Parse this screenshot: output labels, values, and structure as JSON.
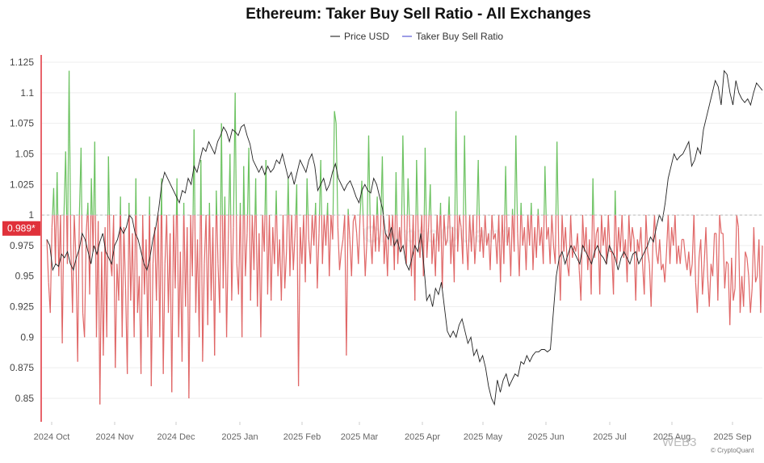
{
  "chart_data": {
    "type": "line",
    "title": "Ethereum: Taker Buy Sell Ratio - All Exchanges",
    "legend": [
      {
        "name": "Price USD",
        "color": "#333333"
      },
      {
        "name": "Taker Buy Sell Ratio",
        "color": "#5b5bd6"
      }
    ],
    "legend_position": "top-center",
    "y_ticks": [
      "1.125",
      "1.1",
      "1.075",
      "1.05",
      "1.025",
      "1",
      "0.975",
      "0.95",
      "0.925",
      "0.9",
      "0.875",
      "0.85"
    ],
    "ylim": [
      0.835,
      1.133
    ],
    "x_ticks": [
      "2024 Oct",
      "2024 Nov",
      "2024 Dec",
      "2025 Jan",
      "2025 Feb",
      "2025 Mar",
      "2025 Apr",
      "2025 May",
      "2025 Jun",
      "2025 Jul",
      "2025 Aug",
      "2025 Sep"
    ],
    "baseline": 1,
    "current_value_label": "0.989*",
    "colors": {
      "above": "#6cc261",
      "below": "#e06767",
      "price": "#222222",
      "marker": "#e0313a"
    },
    "grid": true,
    "ratio_values": [
      0.98,
      0.945,
      0.92,
      0.99,
      1.022,
      0.96,
      1.035,
      0.95,
      1.0,
      0.895,
      1.0,
      1.052,
      0.96,
      1.118,
      0.975,
      0.92,
      1.0,
      0.965,
      0.88,
      1.0,
      1.055,
      0.92,
      0.9,
      0.985,
      1.01,
      0.935,
      1.03,
      0.97,
      1.06,
      0.9,
      0.995,
      0.845,
      0.97,
      0.885,
      0.99,
      0.9,
      1.048,
      0.965,
      0.95,
      1.0,
      0.875,
      0.96,
      0.93,
      1.015,
      0.9,
      0.99,
      0.94,
      0.87,
      1.01,
      0.93,
      0.985,
      0.9,
      1.03,
      0.92,
      0.95,
      0.87,
      1.0,
      0.935,
      0.98,
      0.9,
      1.015,
      0.86,
      0.96,
      0.99,
      0.93,
      1.0,
      0.9,
      1.03,
      0.87,
      0.96,
      1.0,
      0.92,
      0.985,
      0.855,
      1.0,
      0.94,
      1.03,
      0.9,
      0.97,
      0.88,
      1.01,
      0.925,
      0.99,
      0.85,
      1.0,
      0.95,
      1.07,
      0.92,
      0.98,
      0.9,
      1.045,
      0.88,
      0.96,
      1.0,
      0.91,
      1.01,
      0.93,
      0.99,
      0.885,
      1.02,
      0.96,
      0.92,
      1.075,
      0.94,
      1.015,
      0.9,
      0.98,
      1.05,
      0.93,
      0.99,
      1.1,
      0.96,
      0.935,
      1.01,
      0.9,
      1.04,
      0.95,
      0.985,
      1.055,
      0.93,
      1.0,
      0.955,
      1.03,
      0.925,
      0.985,
      0.9,
      1.0,
      0.97,
      1.045,
      0.935,
      1.0,
      0.93,
      0.99,
      0.96,
      1.02,
      0.95,
      0.98,
      0.93,
      1.0,
      0.94,
      0.97,
      1.03,
      0.95,
      1.0,
      0.955,
      0.985,
      1.025,
      0.86,
      0.99,
      0.96,
      1.0,
      0.945,
      1.03,
      0.98,
      0.96,
      1.0,
      0.975,
      1.01,
      0.94,
      0.985,
      1.045,
      0.96,
      1.0,
      0.975,
      1.01,
      0.95,
      1.0,
      0.98,
      1.085,
      1.075,
      0.99,
      0.955,
      0.97,
      0.98,
      1.0,
      0.885,
      1.005,
      0.98,
      0.95,
      0.995,
      1.0,
      0.985,
      0.96,
      1.0,
      1.028,
      0.99,
      0.95,
      0.98,
      1.065,
      0.985,
      0.96,
      1.0,
      0.97,
      1.015,
      0.97,
      0.99,
      1.048,
      0.96,
      0.985,
      0.95,
      1.0,
      0.975,
      1.0,
      0.955,
      1.035,
      0.96,
      0.99,
      0.97,
      1.065,
      0.985,
      0.96,
      1.03,
      0.99,
      0.95,
      1.0,
      0.93,
      1.045,
      0.98,
      0.965,
      1.0,
      0.95,
      1.055,
      0.965,
      0.99,
      1.025,
      0.96,
      0.985,
      0.95,
      1.0,
      0.97,
      1.01,
      0.94,
      1.0,
      0.975,
      0.98,
      1.015,
      0.96,
      0.99,
      0.945,
      1.085,
      0.97,
      1.0,
      0.99,
      0.96,
      1.065,
      0.98,
      0.955,
      1.0,
      0.97,
      1.0,
      0.96,
      0.985,
      1.045,
      0.97,
      0.99,
      0.965,
      1.0,
      0.975,
      0.985,
      0.955,
      1.0,
      0.98,
      0.985,
      0.96,
      1.0,
      0.945,
      1.0,
      0.96,
      1.04,
      0.975,
      0.99,
      0.95,
      1.005,
      0.97,
      1.065,
      0.985,
      0.95,
      1.01,
      0.975,
      0.99,
      0.955,
      1.0,
      0.975,
      1.01,
      0.955,
      0.99,
      0.965,
      1.005,
      0.975,
      0.99,
      0.96,
      1.04,
      0.98,
      0.99,
      0.96,
      1.0,
      0.975,
      0.96,
      1.06,
      0.975,
      0.93,
      1.0,
      0.97,
      0.99,
      0.96,
      0.95,
      1.0,
      0.965,
      0.975,
      0.97,
      0.985,
      0.955,
      0.93,
      1.0,
      0.97,
      0.99,
      0.955,
      0.98,
      0.935,
      1.03,
      0.965,
      0.985,
      0.99,
      0.935,
      1.0,
      0.975,
      0.99,
      0.96,
      1.0,
      0.97,
      0.97,
      0.935,
      1.02,
      0.96,
      0.99,
      0.97,
      1.0,
      0.965,
      0.98,
      0.945,
      1.0,
      0.97,
      0.99,
      0.98,
      0.93,
      0.98,
      0.97,
      0.99,
      0.96,
      0.935,
      1.0,
      0.97,
      0.96,
      0.925,
      0.975,
      1.0,
      0.97,
      0.96,
      0.98,
      0.955,
      0.96,
      0.945,
      0.97,
      1.0,
      0.96,
      0.99,
      0.975,
      1.0,
      0.96,
      0.975,
      0.96,
      0.98,
      0.98,
      0.965,
      0.955,
      0.97,
      0.95,
      0.96,
      1.0,
      0.945,
      0.92,
      0.965,
      0.98,
      0.935,
      0.96,
      0.99,
      0.95,
      0.925,
      0.96,
      0.95,
      0.985,
      0.985,
      0.93,
      1.0,
      0.985,
      0.985,
      0.94,
      0.962,
      0.96,
      0.91,
      0.965,
      0.93,
      0.94,
      1.0,
      0.99,
      0.92,
      0.95,
      0.925,
      0.97,
      0.965,
      0.95,
      0.92,
      0.94,
      0.99,
      0.945,
      0.95,
      0.98,
      0.92,
      0.975
    ],
    "price_path": [
      [
        0,
        0.98
      ],
      [
        1,
        0.975
      ],
      [
        2,
        0.955
      ],
      [
        3,
        0.96
      ],
      [
        4,
        0.958
      ],
      [
        5,
        0.968
      ],
      [
        6,
        0.965
      ],
      [
        7,
        0.97
      ],
      [
        8,
        0.96
      ],
      [
        9,
        0.955
      ],
      [
        10,
        0.965
      ],
      [
        11,
        0.972
      ],
      [
        12,
        0.985
      ],
      [
        13,
        0.98
      ],
      [
        14,
        0.97
      ],
      [
        15,
        0.96
      ],
      [
        16,
        0.975
      ],
      [
        17,
        0.968
      ],
      [
        18,
        0.978
      ],
      [
        19,
        0.985
      ],
      [
        20,
        0.97
      ],
      [
        21,
        0.965
      ],
      [
        22,
        0.96
      ],
      [
        23,
        0.975
      ],
      [
        24,
        0.98
      ],
      [
        25,
        0.99
      ],
      [
        26,
        0.985
      ],
      [
        27,
        0.99
      ],
      [
        28,
        1.0
      ],
      [
        29,
        0.997
      ],
      [
        30,
        0.985
      ],
      [
        31,
        0.98
      ],
      [
        32,
        0.97
      ],
      [
        33,
        0.96
      ],
      [
        34,
        0.955
      ],
      [
        35,
        0.965
      ],
      [
        36,
        0.98
      ],
      [
        37,
        0.99
      ],
      [
        38,
        1.005
      ],
      [
        39,
        1.025
      ],
      [
        40,
        1.035
      ],
      [
        41,
        1.03
      ],
      [
        42,
        1.025
      ],
      [
        43,
        1.02
      ],
      [
        44,
        1.015
      ],
      [
        45,
        1.01
      ],
      [
        46,
        1.02
      ],
      [
        47,
        1.018
      ],
      [
        48,
        1.03
      ],
      [
        49,
        1.025
      ],
      [
        50,
        1.04
      ],
      [
        51,
        1.035
      ],
      [
        52,
        1.045
      ],
      [
        53,
        1.055
      ],
      [
        54,
        1.052
      ],
      [
        55,
        1.06
      ],
      [
        56,
        1.055
      ],
      [
        57,
        1.05
      ],
      [
        58,
        1.06
      ],
      [
        59,
        1.065
      ],
      [
        60,
        1.072
      ],
      [
        61,
        1.068
      ],
      [
        62,
        1.06
      ],
      [
        63,
        1.07
      ],
      [
        64,
        1.068
      ],
      [
        65,
        1.065
      ],
      [
        66,
        1.072
      ],
      [
        67,
        1.074
      ],
      [
        68,
        1.065
      ],
      [
        69,
        1.058
      ],
      [
        70,
        1.045
      ],
      [
        71,
        1.04
      ],
      [
        72,
        1.035
      ],
      [
        73,
        1.04
      ],
      [
        74,
        1.033
      ],
      [
        75,
        1.04
      ],
      [
        76,
        1.035
      ],
      [
        77,
        1.038
      ],
      [
        78,
        1.045
      ],
      [
        79,
        1.042
      ],
      [
        80,
        1.05
      ],
      [
        81,
        1.04
      ],
      [
        82,
        1.03
      ],
      [
        83,
        1.035
      ],
      [
        84,
        1.025
      ],
      [
        85,
        1.035
      ],
      [
        86,
        1.045
      ],
      [
        87,
        1.04
      ],
      [
        88,
        1.035
      ],
      [
        89,
        1.045
      ],
      [
        90,
        1.05
      ],
      [
        91,
        1.04
      ],
      [
        92,
        1.02
      ],
      [
        93,
        1.025
      ],
      [
        94,
        1.03
      ],
      [
        95,
        1.02
      ],
      [
        96,
        1.025
      ],
      [
        97,
        1.035
      ],
      [
        98,
        1.042
      ],
      [
        99,
        1.03
      ],
      [
        100,
        1.025
      ],
      [
        101,
        1.02
      ],
      [
        102,
        1.025
      ],
      [
        103,
        1.028
      ],
      [
        104,
        1.022
      ],
      [
        105,
        1.015
      ],
      [
        106,
        1.01
      ],
      [
        107,
        1.02
      ],
      [
        108,
        1.025
      ],
      [
        109,
        1.02
      ],
      [
        110,
        1.018
      ],
      [
        111,
        1.03
      ],
      [
        112,
        1.025
      ],
      [
        113,
        1.015
      ],
      [
        114,
        1.005
      ],
      [
        115,
        0.985
      ],
      [
        116,
        0.98
      ],
      [
        117,
        0.99
      ],
      [
        118,
        0.975
      ],
      [
        119,
        0.98
      ],
      [
        120,
        0.97
      ],
      [
        121,
        0.975
      ],
      [
        122,
        0.96
      ],
      [
        123,
        0.955
      ],
      [
        124,
        0.965
      ],
      [
        125,
        0.975
      ],
      [
        126,
        0.97
      ],
      [
        127,
        0.985
      ],
      [
        128,
        0.96
      ],
      [
        129,
        0.93
      ],
      [
        130,
        0.935
      ],
      [
        131,
        0.925
      ],
      [
        132,
        0.94
      ],
      [
        133,
        0.935
      ],
      [
        134,
        0.945
      ],
      [
        135,
        0.925
      ],
      [
        136,
        0.905
      ],
      [
        137,
        0.9
      ],
      [
        138,
        0.905
      ],
      [
        139,
        0.9
      ],
      [
        140,
        0.91
      ],
      [
        141,
        0.915
      ],
      [
        142,
        0.905
      ],
      [
        143,
        0.895
      ],
      [
        144,
        0.9
      ],
      [
        145,
        0.885
      ],
      [
        146,
        0.89
      ],
      [
        147,
        0.88
      ],
      [
        148,
        0.885
      ],
      [
        149,
        0.875
      ],
      [
        150,
        0.86
      ],
      [
        151,
        0.85
      ],
      [
        152,
        0.845
      ],
      [
        153,
        0.865
      ],
      [
        154,
        0.855
      ],
      [
        155,
        0.865
      ],
      [
        156,
        0.87
      ],
      [
        157,
        0.86
      ],
      [
        158,
        0.865
      ],
      [
        159,
        0.87
      ],
      [
        160,
        0.868
      ],
      [
        161,
        0.88
      ],
      [
        162,
        0.878
      ],
      [
        163,
        0.885
      ],
      [
        164,
        0.88
      ],
      [
        165,
        0.885
      ],
      [
        166,
        0.888
      ],
      [
        167,
        0.888
      ],
      [
        168,
        0.89
      ],
      [
        169,
        0.89
      ],
      [
        170,
        0.888
      ],
      [
        171,
        0.89
      ],
      [
        172,
        0.92
      ],
      [
        173,
        0.95
      ],
      [
        174,
        0.965
      ],
      [
        175,
        0.97
      ],
      [
        176,
        0.96
      ],
      [
        177,
        0.968
      ],
      [
        178,
        0.975
      ],
      [
        179,
        0.97
      ],
      [
        180,
        0.965
      ],
      [
        181,
        0.96
      ],
      [
        182,
        0.975
      ],
      [
        183,
        0.97
      ],
      [
        184,
        0.965
      ],
      [
        185,
        0.96
      ],
      [
        186,
        0.97
      ],
      [
        187,
        0.975
      ],
      [
        188,
        0.968
      ],
      [
        189,
        0.965
      ],
      [
        190,
        0.96
      ],
      [
        191,
        0.975
      ],
      [
        192,
        0.97
      ],
      [
        193,
        0.965
      ],
      [
        194,
        0.955
      ],
      [
        195,
        0.965
      ],
      [
        196,
        0.97
      ],
      [
        197,
        0.965
      ],
      [
        198,
        0.96
      ],
      [
        199,
        0.968
      ],
      [
        200,
        0.97
      ],
      [
        201,
        0.96
      ],
      [
        202,
        0.965
      ],
      [
        203,
        0.97
      ],
      [
        204,
        0.975
      ],
      [
        205,
        0.982
      ],
      [
        206,
        0.978
      ],
      [
        207,
        0.99
      ],
      [
        208,
        1.0
      ],
      [
        209,
        0.995
      ],
      [
        210,
        1.01
      ],
      [
        211,
        1.03
      ],
      [
        212,
        1.04
      ],
      [
        213,
        1.05
      ],
      [
        214,
        1.045
      ],
      [
        215,
        1.048
      ],
      [
        216,
        1.05
      ],
      [
        217,
        1.055
      ],
      [
        218,
        1.06
      ],
      [
        219,
        1.04
      ],
      [
        220,
        1.045
      ],
      [
        221,
        1.055
      ],
      [
        222,
        1.05
      ],
      [
        223,
        1.07
      ],
      [
        224,
        1.08
      ],
      [
        225,
        1.09
      ],
      [
        226,
        1.1
      ],
      [
        227,
        1.11
      ],
      [
        228,
        1.105
      ],
      [
        229,
        1.09
      ],
      [
        230,
        1.118
      ],
      [
        231,
        1.115
      ],
      [
        232,
        1.1
      ],
      [
        233,
        1.09
      ],
      [
        234,
        1.11
      ],
      [
        235,
        1.1
      ],
      [
        236,
        1.095
      ],
      [
        237,
        1.092
      ],
      [
        238,
        1.095
      ],
      [
        239,
        1.09
      ],
      [
        240,
        1.1
      ],
      [
        241,
        1.108
      ],
      [
        242,
        1.105
      ],
      [
        243,
        1.102
      ]
    ]
  }
}
